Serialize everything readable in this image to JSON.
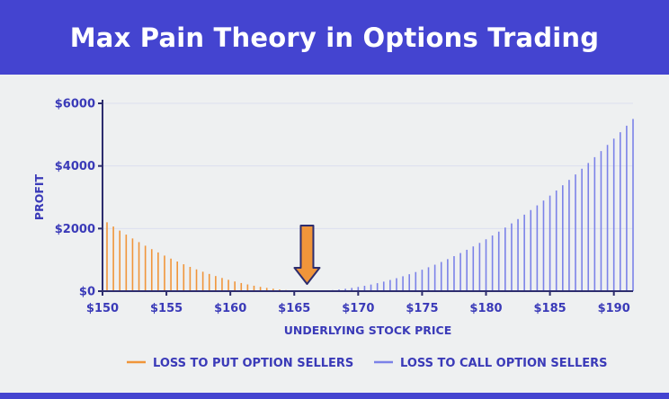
{
  "header": {
    "title": "Max Pain Theory in Options Trading"
  },
  "colors": {
    "header_bg": "#4444d0",
    "put_series": "#f0953a",
    "call_series": "#7b82e8",
    "axis": "#2d2d6e",
    "text": "#3a3ab8",
    "arrow": "#f0953a"
  },
  "chart_data": {
    "type": "bar",
    "title": "Max Pain Theory in Options Trading",
    "xlabel": "UNDERLYING STOCK PRICE",
    "ylabel": "PROFIT",
    "xlim": [
      150,
      191.5
    ],
    "ylim": [
      0,
      6000
    ],
    "x_ticks": [
      150,
      155,
      160,
      165,
      170,
      175,
      180,
      185,
      190
    ],
    "x_tick_labels": [
      "$150",
      "$155",
      "$160",
      "$165",
      "$170",
      "$175",
      "$180",
      "$185",
      "$190"
    ],
    "y_ticks": [
      0,
      2000,
      4000,
      6000
    ],
    "y_tick_labels": [
      "$0",
      "$2000",
      "$4000",
      "$6000"
    ],
    "grid": "horizontal",
    "legend_position": "bottom",
    "bar_step": 0.5,
    "max_pain_annotation": {
      "x": 166,
      "marker": "down-arrow"
    },
    "series": [
      {
        "name": "LOSS TO PUT OPTION SELLERS",
        "x_range": [
          150,
          166
        ],
        "curve": "quadratic",
        "vertex_x": 166,
        "value_at_start": 2200
      },
      {
        "name": "LOSS TO CALL OPTION SELLERS",
        "x_range": [
          166,
          191.5
        ],
        "curve": "quadratic",
        "vertex_x": 166,
        "value_at_end": 5500
      }
    ]
  }
}
